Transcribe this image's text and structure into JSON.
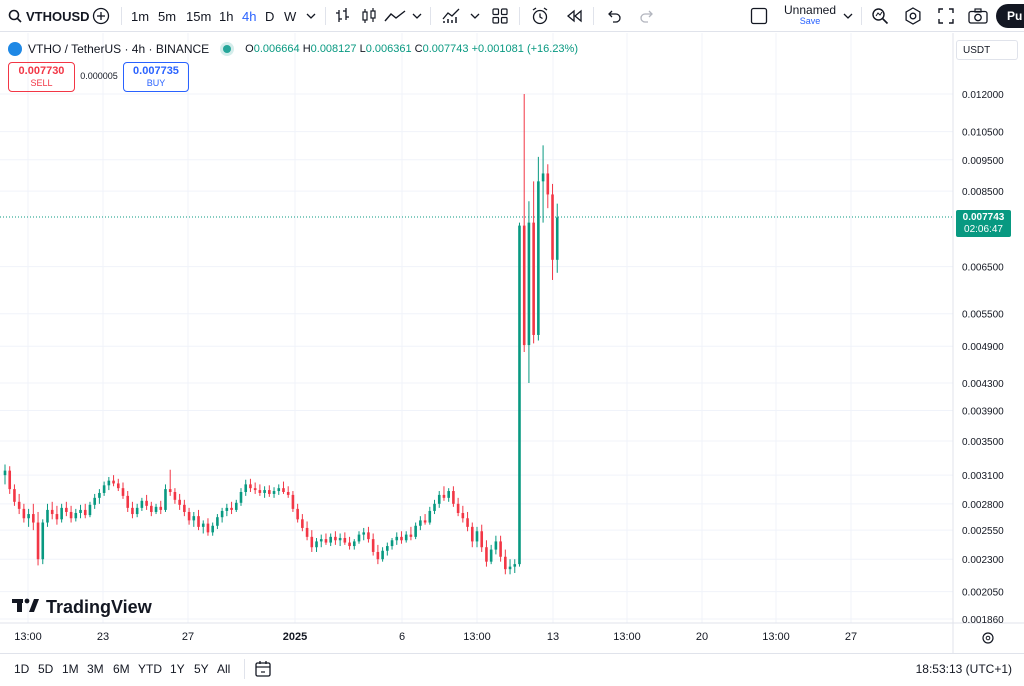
{
  "toolbar": {
    "symbol": "VTHOUSD",
    "intervals": [
      "1m",
      "5m",
      "15m",
      "1h",
      "4h",
      "D",
      "W"
    ],
    "active_interval": "4h",
    "layout_name": "Unnamed",
    "save_label": "Save",
    "publish_label": "Pu"
  },
  "legend": {
    "title": "VTHO / TetherUS · 4h · BINANCE",
    "o_label": "O",
    "o_value": "0.006664",
    "h_label": "H",
    "h_value": "0.008127",
    "l_label": "L",
    "l_value": "0.006361",
    "c_label": "C",
    "c_value": "0.007743",
    "change": "+0.001081 (+16.23%)"
  },
  "trade": {
    "sell_price": "0.007730",
    "sell_label": "SELL",
    "spread": "0.000005",
    "buy_price": "0.007735",
    "buy_label": "BUY"
  },
  "price_scale": {
    "currency": "USDT",
    "labels": [
      "0.012000",
      "0.010500",
      "0.009500",
      "0.008500",
      "0.006500",
      "0.005500",
      "0.004900",
      "0.004300",
      "0.003900",
      "0.003500",
      "0.003100",
      "0.002800",
      "0.002550",
      "0.002300",
      "0.002050",
      "0.001860"
    ],
    "last_price": "0.007743",
    "countdown": "02:06:47"
  },
  "time_scale": {
    "labels": [
      "13:00",
      "23",
      "27",
      "2025",
      "6",
      "13:00",
      "13",
      "13:00",
      "20",
      "13:00",
      "27"
    ]
  },
  "watermark": "TradingView",
  "ranges": [
    "1D",
    "5D",
    "1M",
    "3M",
    "6M",
    "YTD",
    "1Y",
    "5Y",
    "All"
  ],
  "clock": "18:53:13 (UTC+1)",
  "colors": {
    "up": "#089981",
    "down": "#f23645",
    "accent": "#2962ff"
  },
  "chart_data": {
    "type": "candlestick",
    "y_scale": "log",
    "grid": true,
    "candles": [
      [
        0.0031,
        0.00322,
        0.003,
        0.00315
      ],
      [
        0.00315,
        0.0032,
        0.0029,
        0.00295
      ],
      [
        0.00295,
        0.003,
        0.00278,
        0.00282
      ],
      [
        0.00282,
        0.0029,
        0.0027,
        0.00275
      ],
      [
        0.00275,
        0.0028,
        0.00262,
        0.00266
      ],
      [
        0.00266,
        0.00275,
        0.00258,
        0.0027
      ],
      [
        0.0027,
        0.0028,
        0.00255,
        0.00262
      ],
      [
        0.00262,
        0.00272,
        0.00225,
        0.0023
      ],
      [
        0.0023,
        0.00265,
        0.00226,
        0.00262
      ],
      [
        0.00262,
        0.0028,
        0.00258,
        0.00274
      ],
      [
        0.00274,
        0.00282,
        0.00265,
        0.0027
      ],
      [
        0.0027,
        0.00278,
        0.0026,
        0.00265
      ],
      [
        0.00265,
        0.0028,
        0.00262,
        0.00276
      ],
      [
        0.00276,
        0.00282,
        0.00268,
        0.00272
      ],
      [
        0.00272,
        0.00278,
        0.00262,
        0.00266
      ],
      [
        0.00266,
        0.00275,
        0.00263,
        0.00271
      ],
      [
        0.00271,
        0.00279,
        0.00266,
        0.00274
      ],
      [
        0.00274,
        0.0028,
        0.00266,
        0.00269
      ],
      [
        0.00269,
        0.00282,
        0.00267,
        0.00279
      ],
      [
        0.00279,
        0.0029,
        0.00275,
        0.00286
      ],
      [
        0.00286,
        0.00295,
        0.0028,
        0.00291
      ],
      [
        0.00291,
        0.00303,
        0.00288,
        0.00299
      ],
      [
        0.00299,
        0.00308,
        0.00294,
        0.00304
      ],
      [
        0.00304,
        0.0031,
        0.00298,
        0.00301
      ],
      [
        0.00301,
        0.00306,
        0.00293,
        0.00296
      ],
      [
        0.00296,
        0.00302,
        0.00285,
        0.00288
      ],
      [
        0.00288,
        0.00293,
        0.00272,
        0.00276
      ],
      [
        0.00276,
        0.00282,
        0.00266,
        0.0027
      ],
      [
        0.0027,
        0.0028,
        0.00267,
        0.00276
      ],
      [
        0.00276,
        0.00286,
        0.00273,
        0.00283
      ],
      [
        0.00283,
        0.00289,
        0.00274,
        0.00278
      ],
      [
        0.00278,
        0.00282,
        0.00268,
        0.00272
      ],
      [
        0.00272,
        0.0028,
        0.0027,
        0.00277
      ],
      [
        0.00277,
        0.00283,
        0.0027,
        0.00274
      ],
      [
        0.00274,
        0.003,
        0.00272,
        0.00295
      ],
      [
        0.00295,
        0.00316,
        0.00288,
        0.00292
      ],
      [
        0.00292,
        0.00296,
        0.0028,
        0.00284
      ],
      [
        0.00284,
        0.0029,
        0.00274,
        0.00279
      ],
      [
        0.00279,
        0.00284,
        0.00268,
        0.00272
      ],
      [
        0.00272,
        0.00276,
        0.0026,
        0.00264
      ],
      [
        0.00264,
        0.00272,
        0.00258,
        0.00268
      ],
      [
        0.00268,
        0.00274,
        0.00255,
        0.00258
      ],
      [
        0.00258,
        0.00264,
        0.00252,
        0.00261
      ],
      [
        0.00261,
        0.00266,
        0.0025,
        0.00253
      ],
      [
        0.00253,
        0.00262,
        0.0025,
        0.00259
      ],
      [
        0.00259,
        0.0027,
        0.00256,
        0.00267
      ],
      [
        0.00267,
        0.00276,
        0.00262,
        0.00273
      ],
      [
        0.00273,
        0.0028,
        0.00268,
        0.00276
      ],
      [
        0.00276,
        0.00282,
        0.0027,
        0.00274
      ],
      [
        0.00274,
        0.00284,
        0.00272,
        0.00281
      ],
      [
        0.00281,
        0.00296,
        0.00278,
        0.00292
      ],
      [
        0.00292,
        0.00305,
        0.00288,
        0.003
      ],
      [
        0.003,
        0.00306,
        0.00292,
        0.00296
      ],
      [
        0.00296,
        0.00302,
        0.0029,
        0.00294
      ],
      [
        0.00294,
        0.003,
        0.00288,
        0.00291
      ],
      [
        0.00291,
        0.00298,
        0.00286,
        0.00294
      ],
      [
        0.00294,
        0.00299,
        0.00287,
        0.0029
      ],
      [
        0.0029,
        0.00297,
        0.00286,
        0.00293
      ],
      [
        0.00293,
        0.003,
        0.00289,
        0.00296
      ],
      [
        0.00296,
        0.00303,
        0.0029,
        0.00292
      ],
      [
        0.00292,
        0.00298,
        0.00286,
        0.00289
      ],
      [
        0.00289,
        0.00293,
        0.00272,
        0.00275
      ],
      [
        0.00275,
        0.0028,
        0.00262,
        0.00265
      ],
      [
        0.00265,
        0.0027,
        0.00254,
        0.00257
      ],
      [
        0.00257,
        0.00263,
        0.00246,
        0.00249
      ],
      [
        0.00249,
        0.00255,
        0.00236,
        0.0024
      ],
      [
        0.0024,
        0.00248,
        0.00236,
        0.00245
      ],
      [
        0.00245,
        0.00251,
        0.0024,
        0.00247
      ],
      [
        0.00247,
        0.00252,
        0.00242,
        0.00244
      ],
      [
        0.00244,
        0.00252,
        0.00241,
        0.00249
      ],
      [
        0.00249,
        0.00254,
        0.00242,
        0.00246
      ],
      [
        0.00246,
        0.00252,
        0.00241,
        0.00248
      ],
      [
        0.00248,
        0.00253,
        0.00242,
        0.00244
      ],
      [
        0.00244,
        0.00249,
        0.00238,
        0.00241
      ],
      [
        0.00241,
        0.00247,
        0.00238,
        0.00245
      ],
      [
        0.00245,
        0.00254,
        0.00243,
        0.00251
      ],
      [
        0.00251,
        0.00257,
        0.00246,
        0.00253
      ],
      [
        0.00253,
        0.00258,
        0.00244,
        0.00247
      ],
      [
        0.00247,
        0.00252,
        0.00233,
        0.00236
      ],
      [
        0.00236,
        0.00242,
        0.00226,
        0.0023
      ],
      [
        0.0023,
        0.0024,
        0.00228,
        0.00237
      ],
      [
        0.00237,
        0.00244,
        0.00233,
        0.00241
      ],
      [
        0.00241,
        0.00248,
        0.00238,
        0.00246
      ],
      [
        0.00246,
        0.00253,
        0.00242,
        0.00249
      ],
      [
        0.00249,
        0.00254,
        0.00243,
        0.00246
      ],
      [
        0.00246,
        0.00254,
        0.00244,
        0.00251
      ],
      [
        0.00251,
        0.00258,
        0.00246,
        0.00249
      ],
      [
        0.00249,
        0.00262,
        0.00247,
        0.00259
      ],
      [
        0.00259,
        0.00268,
        0.00255,
        0.00264
      ],
      [
        0.00264,
        0.0027,
        0.0026,
        0.00262
      ],
      [
        0.00262,
        0.00277,
        0.0026,
        0.00273
      ],
      [
        0.00273,
        0.00284,
        0.0027,
        0.0028
      ],
      [
        0.0028,
        0.00293,
        0.00276,
        0.00289
      ],
      [
        0.00289,
        0.00298,
        0.00283,
        0.00286
      ],
      [
        0.00286,
        0.00296,
        0.00282,
        0.00293
      ],
      [
        0.00293,
        0.00298,
        0.00277,
        0.0028
      ],
      [
        0.0028,
        0.00286,
        0.00268,
        0.00271
      ],
      [
        0.00271,
        0.00278,
        0.00262,
        0.00266
      ],
      [
        0.00266,
        0.00272,
        0.00254,
        0.00258
      ],
      [
        0.00258,
        0.00262,
        0.0024,
        0.00245
      ],
      [
        0.00245,
        0.00258,
        0.0024,
        0.00254
      ],
      [
        0.00254,
        0.0026,
        0.00236,
        0.0024
      ],
      [
        0.0024,
        0.00246,
        0.00224,
        0.00228
      ],
      [
        0.00228,
        0.00242,
        0.00226,
        0.00238
      ],
      [
        0.00238,
        0.0025,
        0.00234,
        0.00245
      ],
      [
        0.00245,
        0.0025,
        0.00228,
        0.00232
      ],
      [
        0.00232,
        0.00238,
        0.00218,
        0.00222
      ],
      [
        0.00222,
        0.0023,
        0.00218,
        0.00224
      ],
      [
        0.00224,
        0.0023,
        0.00219,
        0.00226
      ],
      [
        0.00226,
        0.0076,
        0.00224,
        0.00752
      ],
      [
        0.00752,
        0.012,
        0.0048,
        0.00492
      ],
      [
        0.00492,
        0.0082,
        0.0043,
        0.0076
      ],
      [
        0.0076,
        0.0088,
        0.00495,
        0.0051
      ],
      [
        0.0051,
        0.0096,
        0.005,
        0.0088
      ],
      [
        0.0088,
        0.01,
        0.0076,
        0.00905
      ],
      [
        0.00905,
        0.00935,
        0.008,
        0.0084
      ],
      [
        0.0084,
        0.00872,
        0.0062,
        0.00666
      ],
      [
        0.00666,
        0.00813,
        0.00636,
        0.00774
      ]
    ]
  }
}
